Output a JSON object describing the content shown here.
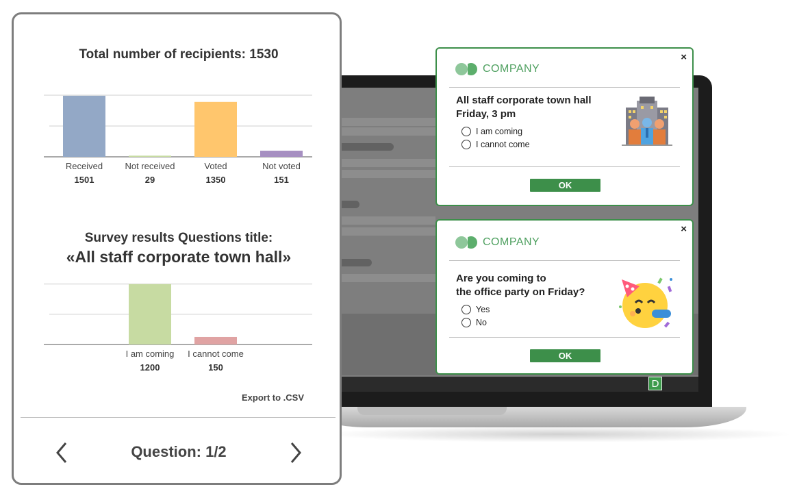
{
  "stats_panel": {
    "total_title": "Total number of recipients: 1530",
    "survey_heading_line1": "Survey results Questions title:",
    "survey_heading_line2": "«All staff corporate town hall»",
    "export_label": "Export to .CSV",
    "pager_label": "Question: 1/2",
    "prev_icon": "chevron-left-icon",
    "next_icon": "chevron-right-icon"
  },
  "chart_data": [
    {
      "type": "bar",
      "categories": [
        "Received",
        "Not received",
        "Voted",
        "Not voted"
      ],
      "values": [
        1501,
        29,
        1350,
        151
      ],
      "value_labels": [
        "1501",
        "29",
        "1350",
        "151"
      ],
      "colors": [
        "#93a8c6",
        "#c7dba2",
        "#ffc66d",
        "#a68fc1"
      ],
      "title": "Total number of recipients: 1530",
      "ylim": [
        0,
        1650
      ],
      "grid": true
    },
    {
      "type": "bar",
      "categories": [
        "",
        "I am coming",
        "I cannot come",
        ""
      ],
      "values": [
        0,
        1200,
        150,
        0
      ],
      "value_labels": [
        "",
        "1200",
        "150",
        ""
      ],
      "colors": [
        "#93a8c6",
        "#c7dba2",
        "#e0a3a3",
        "#a68fc1"
      ],
      "ylim": [
        0,
        1200
      ],
      "grid": true
    }
  ],
  "popup1": {
    "brand": "COMPANY",
    "close": "×",
    "question_line1": "All staff corporate town hall",
    "question_line2": "Friday, 3 pm",
    "options": [
      "I am coming",
      "I cannot come"
    ],
    "ok_label": "OK",
    "illustration": "people-building-illustration",
    "accent": "#3d8f4a"
  },
  "popup2": {
    "brand": "COMPANY",
    "close": "×",
    "question_line1": "Are you coming to",
    "question_line2": "the office party on Friday?",
    "options": [
      "Yes",
      "No"
    ],
    "ok_label": "OK",
    "illustration": "party-emoji-icon",
    "accent": "#3d8f4a"
  },
  "laptop": {
    "badge": "D"
  }
}
